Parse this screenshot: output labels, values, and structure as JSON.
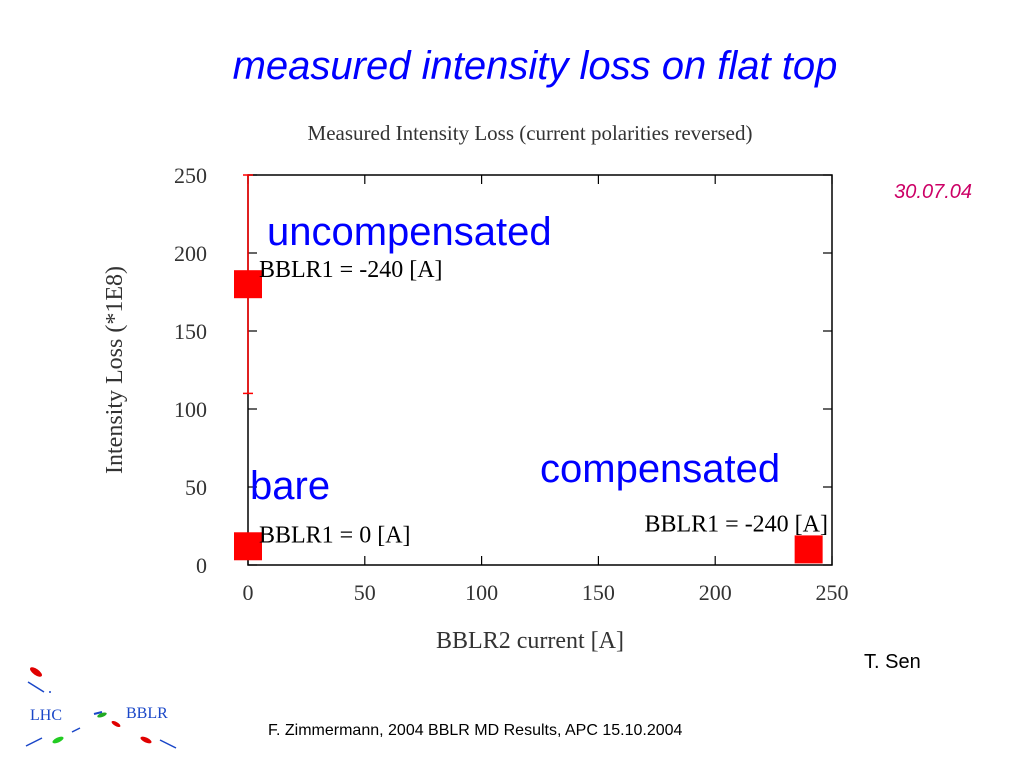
{
  "slide": {
    "title": "measured intensity loss on flat top",
    "date": "30.07.04",
    "author": "T. Sen",
    "footer": "F. Zimmermann, 2004 BBLR MD Results, APC 15.10.2004"
  },
  "logo": {
    "left_text": "LHC",
    "right_text": "BBLR"
  },
  "colors": {
    "accent": "#0000ff",
    "date": "#cc0066",
    "marker": "#ff0000"
  },
  "chart_data": {
    "type": "scatter",
    "title": "Measured Intensity Loss (current polarities reversed)",
    "xlabel": "BBLR2 current [A]",
    "ylabel": "Intensity Loss (*1E8)",
    "xlim": [
      0,
      250
    ],
    "ylim": [
      0,
      250
    ],
    "x_ticks": [
      0,
      50,
      100,
      150,
      200,
      250
    ],
    "y_ticks": [
      0,
      50,
      100,
      150,
      200,
      250
    ],
    "grid": false,
    "points": [
      {
        "x": 0,
        "y": 180,
        "err_low": 110,
        "err_high": 250,
        "label": "BBLR1 = -240 [A]",
        "annotation": "uncompensated"
      },
      {
        "x": 0,
        "y": 12,
        "label": "BBLR1 = 0 [A]",
        "annotation": "bare"
      },
      {
        "x": 240,
        "y": 10,
        "label": "BBLR1 =  -240 [A]",
        "annotation": "compensated"
      }
    ]
  }
}
